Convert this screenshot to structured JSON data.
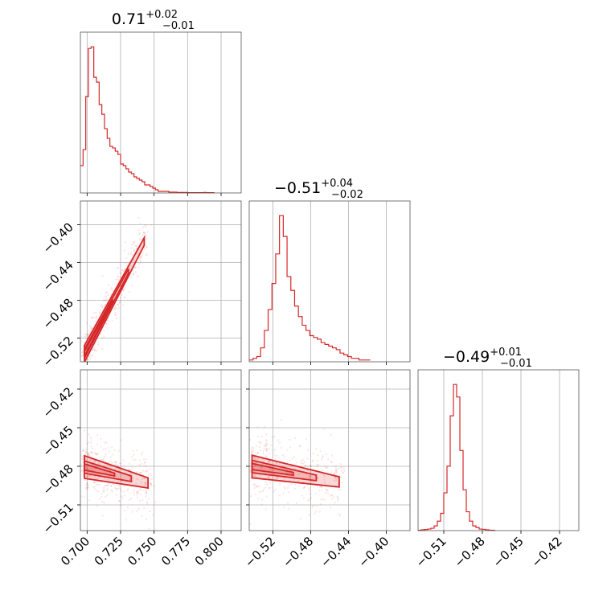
{
  "chart_data": {
    "type": "corner",
    "color": "#d62728",
    "parameters": [
      {
        "median": "0.71",
        "plus": "+0.02",
        "minus": "−0.01",
        "range": [
          0.695,
          0.815
        ],
        "ticks": [
          0.7,
          0.725,
          0.75,
          0.775,
          0.8
        ],
        "tick_labels": [
          "0.700",
          "0.725",
          "0.750",
          "0.775",
          "0.800"
        ]
      },
      {
        "median": "−0.51",
        "plus": "+0.04",
        "minus": "−0.02",
        "range": [
          -0.545,
          -0.375
        ],
        "ticks": [
          -0.52,
          -0.48,
          -0.44,
          -0.4
        ],
        "tick_labels": [
          "−0.52",
          "−0.48",
          "−0.44",
          "−0.40"
        ]
      },
      {
        "median": "−0.49",
        "plus": "+0.01",
        "minus": "−0.01",
        "range": [
          -0.53,
          -0.405
        ],
        "ticks": [
          -0.51,
          -0.48,
          -0.45,
          -0.42
        ],
        "tick_labels": [
          "−0.51",
          "−0.48",
          "−0.45",
          "−0.42"
        ]
      }
    ],
    "histograms": [
      {
        "parameter": 0,
        "bin_width": 0.002,
        "counts": [
          0.17,
          0.27,
          0.6,
          0.9,
          0.91,
          0.72,
          0.69,
          0.55,
          0.49,
          0.4,
          0.34,
          0.29,
          0.28,
          0.26,
          0.24,
          0.18,
          0.17,
          0.15,
          0.13,
          0.12,
          0.1,
          0.09,
          0.08,
          0.07,
          0.05,
          0.05,
          0.04,
          0.03,
          0.02,
          0.01,
          0.01,
          0.01,
          0.01,
          0.005,
          0.005,
          0.005,
          0.003,
          0.003,
          0.003,
          0.003,
          0.002,
          0.002,
          0.002,
          0.002,
          0.002,
          0.002,
          0.003,
          0.002,
          0.002,
          0.002
        ]
      },
      {
        "parameter": 1,
        "bin_width": 0.004,
        "counts": [
          0.01,
          0.02,
          0.03,
          0.08,
          0.18,
          0.3,
          0.45,
          0.62,
          0.84,
          0.72,
          0.49,
          0.41,
          0.32,
          0.26,
          0.21,
          0.18,
          0.15,
          0.14,
          0.13,
          0.11,
          0.1,
          0.09,
          0.08,
          0.07,
          0.05,
          0.04,
          0.03,
          0.02,
          0.02,
          0.01,
          0.01,
          0.01
        ]
      },
      {
        "parameter": 2,
        "bin_width": 0.0025,
        "counts": [
          0.002,
          0.005,
          0.007,
          0.01,
          0.015,
          0.03,
          0.06,
          0.11,
          0.24,
          0.41,
          0.73,
          0.93,
          0.85,
          0.51,
          0.26,
          0.12,
          0.06,
          0.03,
          0.02,
          0.01,
          0.008,
          0.005,
          0.003,
          0.002
        ]
      }
    ],
    "pairs": [
      {
        "x": 0,
        "y": 1,
        "center": [
          0.708,
          -0.51
        ],
        "slope": 2.66,
        "spread": 0.004,
        "outer": 0.012,
        "x_extent": [
          0.698,
          0.745
        ]
      },
      {
        "x": 0,
        "y": 2,
        "center": [
          0.715,
          -0.485
        ],
        "slope": -0.26,
        "spread": 0.004,
        "outer": 0.012,
        "x_extent": [
          0.698,
          0.748
        ]
      },
      {
        "x": 1,
        "y": 2,
        "center": [
          -0.505,
          -0.485
        ],
        "slope": -0.13,
        "spread": 0.004,
        "outer": 0.012,
        "x_extent": [
          -0.542,
          -0.445
        ]
      }
    ]
  }
}
